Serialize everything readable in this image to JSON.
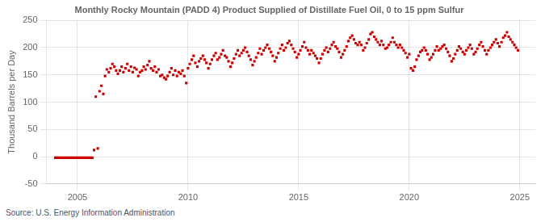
{
  "chart_data": {
    "type": "scatter",
    "title": "Monthly Rocky Mountain (PADD 4) Product Supplied of Distillate Fuel Oil, 0 to 15 ppm Sulfur",
    "ylabel": "Thousand Barrels per Day",
    "annotations": [
      "Source: U.S. Energy Information Administration"
    ],
    "color": "#cc0000",
    "marker": "square",
    "grid": true,
    "xlim": [
      2003.6,
      2025.7
    ],
    "xticks": [
      2005,
      2010,
      2015,
      2020,
      2025
    ],
    "ylim": [
      -50,
      250
    ],
    "yticks": [
      -50,
      0,
      50,
      100,
      150,
      200,
      250
    ],
    "x": [
      2004.0,
      2004.08,
      2004.17,
      2004.25,
      2004.33,
      2004.42,
      2004.5,
      2004.58,
      2004.67,
      2004.75,
      2004.83,
      2004.92,
      2005.0,
      2005.08,
      2005.17,
      2005.25,
      2005.33,
      2005.42,
      2005.5,
      2005.58,
      2005.67,
      2005.75,
      2005.83,
      2005.92,
      2006.0,
      2006.08,
      2006.17,
      2006.25,
      2006.33,
      2006.42,
      2006.5,
      2006.58,
      2006.67,
      2006.75,
      2006.83,
      2006.92,
      2007.0,
      2007.08,
      2007.17,
      2007.25,
      2007.33,
      2007.42,
      2007.5,
      2007.58,
      2007.67,
      2007.75,
      2007.83,
      2007.92,
      2008.0,
      2008.08,
      2008.17,
      2008.25,
      2008.33,
      2008.42,
      2008.5,
      2008.58,
      2008.67,
      2008.75,
      2008.83,
      2008.92,
      2009.0,
      2009.08,
      2009.17,
      2009.25,
      2009.33,
      2009.42,
      2009.5,
      2009.58,
      2009.67,
      2009.75,
      2009.83,
      2009.92,
      2010.0,
      2010.08,
      2010.17,
      2010.25,
      2010.33,
      2010.42,
      2010.5,
      2010.58,
      2010.67,
      2010.75,
      2010.83,
      2010.92,
      2011.0,
      2011.08,
      2011.17,
      2011.25,
      2011.33,
      2011.42,
      2011.5,
      2011.58,
      2011.67,
      2011.75,
      2011.83,
      2011.92,
      2012.0,
      2012.08,
      2012.17,
      2012.25,
      2012.33,
      2012.42,
      2012.5,
      2012.58,
      2012.67,
      2012.75,
      2012.83,
      2012.92,
      2013.0,
      2013.08,
      2013.17,
      2013.25,
      2013.33,
      2013.42,
      2013.5,
      2013.58,
      2013.67,
      2013.75,
      2013.83,
      2013.92,
      2014.0,
      2014.08,
      2014.17,
      2014.25,
      2014.33,
      2014.42,
      2014.5,
      2014.58,
      2014.67,
      2014.75,
      2014.83,
      2014.92,
      2015.0,
      2015.08,
      2015.17,
      2015.25,
      2015.33,
      2015.42,
      2015.5,
      2015.58,
      2015.67,
      2015.75,
      2015.83,
      2015.92,
      2016.0,
      2016.08,
      2016.17,
      2016.25,
      2016.33,
      2016.42,
      2016.5,
      2016.58,
      2016.67,
      2016.75,
      2016.83,
      2016.92,
      2017.0,
      2017.08,
      2017.17,
      2017.25,
      2017.33,
      2017.42,
      2017.5,
      2017.58,
      2017.67,
      2017.75,
      2017.83,
      2017.92,
      2018.0,
      2018.08,
      2018.17,
      2018.25,
      2018.33,
      2018.42,
      2018.5,
      2018.58,
      2018.67,
      2018.75,
      2018.83,
      2018.92,
      2019.0,
      2019.08,
      2019.17,
      2019.25,
      2019.33,
      2019.42,
      2019.5,
      2019.58,
      2019.67,
      2019.75,
      2019.83,
      2019.92,
      2020.0,
      2020.08,
      2020.17,
      2020.25,
      2020.33,
      2020.42,
      2020.5,
      2020.58,
      2020.67,
      2020.75,
      2020.83,
      2020.92,
      2021.0,
      2021.08,
      2021.17,
      2021.25,
      2021.33,
      2021.42,
      2021.5,
      2021.58,
      2021.67,
      2021.75,
      2021.83,
      2021.92,
      2022.0,
      2022.08,
      2022.17,
      2022.25,
      2022.33,
      2022.42,
      2022.5,
      2022.58,
      2022.67,
      2022.75,
      2022.83,
      2022.92,
      2023.0,
      2023.08,
      2023.17,
      2023.25,
      2023.33,
      2023.42,
      2023.5,
      2023.58,
      2023.67,
      2023.75,
      2023.83,
      2023.92,
      2024.0,
      2024.08,
      2024.17,
      2024.25,
      2024.33,
      2024.42,
      2024.5,
      2024.58,
      2024.67,
      2024.75,
      2024.83,
      2024.92
    ],
    "values": [
      -2,
      -2,
      -2,
      -2,
      -2,
      -2,
      -2,
      -2,
      -2,
      -2,
      -2,
      -2,
      -2,
      -2,
      -2,
      -2,
      -2,
      -2,
      -2,
      -2,
      -2,
      12,
      110,
      15,
      120,
      130,
      115,
      148,
      160,
      155,
      162,
      170,
      165,
      158,
      152,
      158,
      165,
      155,
      162,
      170,
      158,
      165,
      155,
      163,
      160,
      148,
      155,
      158,
      165,
      160,
      168,
      175,
      162,
      158,
      165,
      155,
      160,
      148,
      150,
      145,
      142,
      148,
      155,
      162,
      150,
      158,
      148,
      155,
      152,
      158,
      148,
      135,
      162,
      170,
      178,
      185,
      172,
      165,
      175,
      180,
      185,
      178,
      172,
      162,
      170,
      178,
      185,
      190,
      178,
      182,
      188,
      195,
      185,
      182,
      175,
      165,
      172,
      180,
      188,
      195,
      185,
      190,
      195,
      200,
      192,
      185,
      178,
      168,
      175,
      182,
      190,
      198,
      188,
      195,
      200,
      205,
      198,
      192,
      185,
      175,
      182,
      190,
      198,
      205,
      195,
      200,
      208,
      212,
      205,
      198,
      192,
      182,
      188,
      195,
      202,
      210,
      200,
      195,
      188,
      195,
      190,
      185,
      180,
      172,
      180,
      188,
      195,
      200,
      192,
      198,
      205,
      210,
      202,
      198,
      192,
      182,
      188,
      195,
      202,
      212,
      218,
      222,
      215,
      208,
      205,
      210,
      205,
      195,
      200,
      208,
      215,
      225,
      228,
      220,
      215,
      210,
      205,
      212,
      205,
      198,
      200,
      205,
      210,
      218,
      210,
      205,
      200,
      205,
      200,
      195,
      190,
      182,
      188,
      162,
      158,
      165,
      178,
      185,
      192,
      195,
      200,
      195,
      188,
      178,
      182,
      188,
      195,
      202,
      195,
      198,
      202,
      205,
      198,
      192,
      185,
      175,
      180,
      188,
      195,
      202,
      198,
      192,
      188,
      195,
      200,
      205,
      198,
      188,
      192,
      198,
      205,
      210,
      202,
      195,
      188,
      195,
      200,
      205,
      210,
      215,
      208,
      202,
      210,
      218,
      222,
      228,
      220,
      215,
      210,
      205,
      200,
      195
    ]
  }
}
